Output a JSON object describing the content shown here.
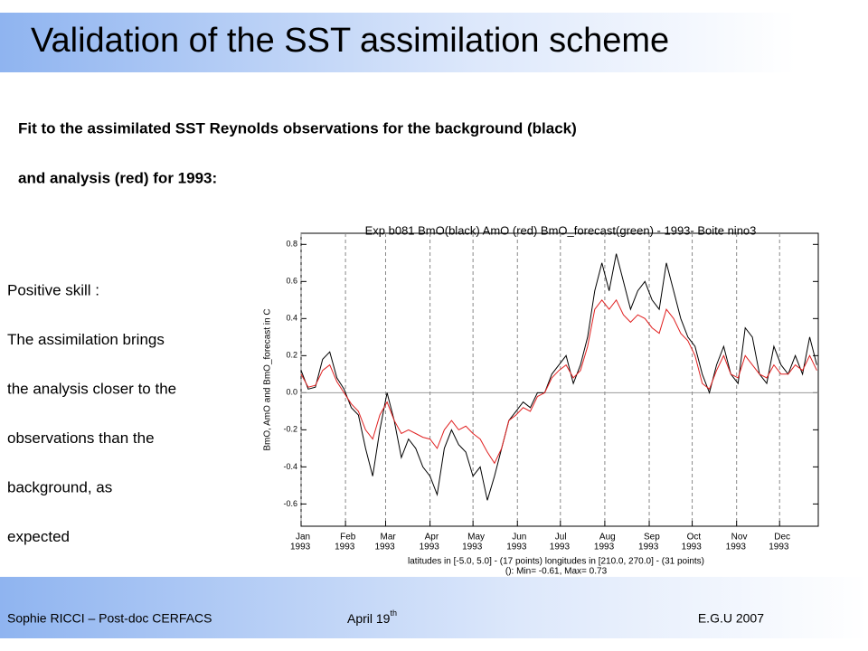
{
  "slide": {
    "title": "Validation of the SST assimilation scheme",
    "intro": [
      "Fit to the assimilated SST Reynolds observations for the background (black)",
      "and analysis (red) for 1993:"
    ],
    "sidebar": [
      "Positive skill :",
      "The assimilation brings",
      "the analysis closer to the",
      "observations than the",
      "background, as",
      "expected"
    ],
    "footer": {
      "author": "Sophie RICCI – Post-doc CERFACS",
      "date": "April 19",
      "date_suffix": "th",
      "event": "E.G.U 2007"
    }
  },
  "chart_data": {
    "type": "line",
    "title": "Exp b081 BmO(black) AmO (red) BmO_forecast(green) - 1993- Boite nino3",
    "ylabel": "BmO, AmO and BmO_forecast in C",
    "notes": [
      "latitudes in [-5.0, 5.0] - (17 points)  longitudes in [210.0, 270.0] - (31 points)",
      "(): Min= -0.61, Max= 0.73"
    ],
    "x": [
      0,
      5,
      10,
      15,
      20,
      25,
      30,
      35,
      40,
      45,
      50,
      55,
      60,
      65,
      70,
      75,
      80,
      85,
      90,
      95,
      100,
      105,
      110,
      115,
      120,
      125,
      130,
      135,
      140,
      145,
      150,
      155,
      160,
      165,
      170,
      175,
      180,
      185,
      190,
      195,
      200,
      205,
      210,
      215,
      220,
      225,
      230,
      235,
      240,
      245,
      250,
      255,
      260,
      265,
      270,
      275,
      280,
      285,
      290,
      295,
      300,
      305,
      310,
      315,
      320,
      325,
      330,
      335,
      340,
      345,
      350,
      355,
      360
    ],
    "series": [
      {
        "name": "BmO",
        "color": "#000000",
        "values": [
          0.12,
          0.02,
          0.03,
          0.18,
          0.22,
          0.08,
          0.02,
          -0.08,
          -0.12,
          -0.3,
          -0.45,
          -0.2,
          0.0,
          -0.15,
          -0.35,
          -0.25,
          -0.3,
          -0.4,
          -0.45,
          -0.55,
          -0.3,
          -0.2,
          -0.28,
          -0.32,
          -0.45,
          -0.4,
          -0.58,
          -0.45,
          -0.3,
          -0.15,
          -0.1,
          -0.05,
          -0.08,
          0.0,
          0.0,
          0.1,
          0.15,
          0.2,
          0.05,
          0.15,
          0.3,
          0.55,
          0.7,
          0.55,
          0.75,
          0.6,
          0.45,
          0.55,
          0.6,
          0.5,
          0.45,
          0.7,
          0.55,
          0.4,
          0.3,
          0.25,
          0.1,
          0.0,
          0.15,
          0.25,
          0.1,
          0.05,
          0.35,
          0.3,
          0.1,
          0.05,
          0.25,
          0.15,
          0.1,
          0.2,
          0.1,
          0.3,
          0.15
        ]
      },
      {
        "name": "AmO",
        "color": "#e02020",
        "values": [
          0.1,
          0.03,
          0.04,
          0.12,
          0.15,
          0.06,
          0.0,
          -0.06,
          -0.1,
          -0.2,
          -0.25,
          -0.12,
          -0.05,
          -0.15,
          -0.22,
          -0.2,
          -0.22,
          -0.24,
          -0.25,
          -0.3,
          -0.2,
          -0.15,
          -0.2,
          -0.18,
          -0.22,
          -0.25,
          -0.32,
          -0.38,
          -0.3,
          -0.15,
          -0.12,
          -0.08,
          -0.1,
          -0.02,
          0.0,
          0.08,
          0.12,
          0.15,
          0.08,
          0.12,
          0.25,
          0.45,
          0.5,
          0.45,
          0.5,
          0.42,
          0.38,
          0.42,
          0.4,
          0.35,
          0.32,
          0.45,
          0.4,
          0.32,
          0.28,
          0.2,
          0.05,
          0.02,
          0.12,
          0.2,
          0.1,
          0.08,
          0.2,
          0.15,
          0.1,
          0.08,
          0.15,
          0.1,
          0.1,
          0.15,
          0.12,
          0.2,
          0.12
        ]
      }
    ],
    "xlim": [
      0,
      361
    ],
    "xticks": [
      {
        "value": 0,
        "label": "Jan"
      },
      {
        "value": 31,
        "label": "Feb"
      },
      {
        "value": 59,
        "label": "Mar"
      },
      {
        "value": 90,
        "label": "Apr"
      },
      {
        "value": 120,
        "label": "May"
      },
      {
        "value": 151,
        "label": "Jun"
      },
      {
        "value": 181,
        "label": "Jul"
      },
      {
        "value": 212,
        "label": "Aug"
      },
      {
        "value": 243,
        "label": "Sep"
      },
      {
        "value": 273,
        "label": "Oct"
      },
      {
        "value": 304,
        "label": "Nov"
      },
      {
        "value": 334,
        "label": "Dec"
      }
    ],
    "xtick_years": [
      "1993",
      "1993",
      "1993",
      "1993",
      "1993",
      "1993",
      "1993",
      "1993",
      "1993",
      "1993",
      "1993",
      "1993"
    ],
    "ylim": [
      -0.72,
      0.86
    ],
    "yticks": [
      0.8,
      0.6,
      0.4,
      0.2,
      {
        "value": 0,
        "label": "0.0"
      },
      -0.2,
      -0.4,
      -0.6
    ],
    "grid": true
  }
}
